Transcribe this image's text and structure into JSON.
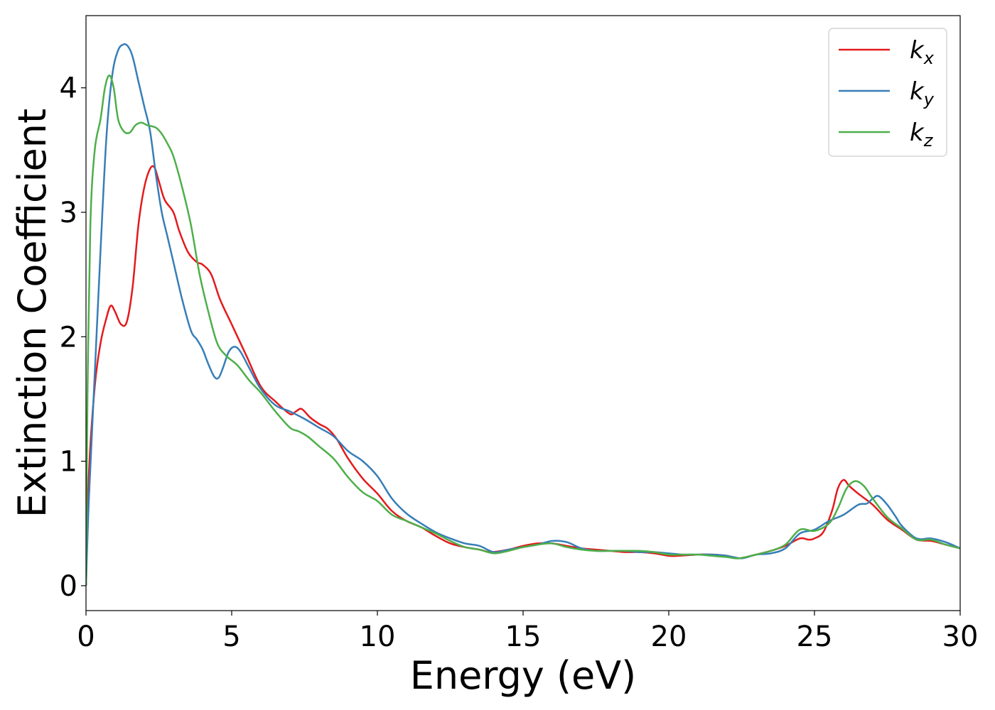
{
  "chart_data": {
    "type": "line",
    "title": "",
    "xlabel": "Energy (eV)",
    "ylabel": "Extinction Coefficient",
    "xlim": [
      0,
      30
    ],
    "ylim": [
      -0.2,
      4.58
    ],
    "xticks": [
      0,
      5,
      10,
      15,
      20,
      25,
      30
    ],
    "yticks": [
      0,
      1,
      2,
      3,
      4
    ],
    "xtick_labels": [
      "0",
      "5",
      "10",
      "15",
      "20",
      "25",
      "30"
    ],
    "ytick_labels": [
      "0",
      "1",
      "2",
      "3",
      "4"
    ],
    "grid": false,
    "legend_position": "top-right",
    "series": [
      {
        "name": "k_x",
        "label_main": "k",
        "label_sub": "x",
        "color": "#e41a1c",
        "x": [
          0,
          0.1,
          0.3,
          0.5,
          0.7,
          0.85,
          1.0,
          1.2,
          1.4,
          1.6,
          1.8,
          2.0,
          2.2,
          2.35,
          2.5,
          2.7,
          3.0,
          3.2,
          3.5,
          3.8,
          4.0,
          4.3,
          4.6,
          5.0,
          5.5,
          6.0,
          6.5,
          7.0,
          7.2,
          7.4,
          7.7,
          8.0,
          8.3,
          8.6,
          9.0,
          9.5,
          10.0,
          10.5,
          11.0,
          11.5,
          12.0,
          12.5,
          13.0,
          13.5,
          13.9,
          14.5,
          15.0,
          15.5,
          16.0,
          16.5,
          17.0,
          17.5,
          18.0,
          18.5,
          19.0,
          19.5,
          20.0,
          20.3,
          21.0,
          21.5,
          22.0,
          22.4,
          23.0,
          23.5,
          24.0,
          24.5,
          24.8,
          25.0,
          25.3,
          25.6,
          25.8,
          26.0,
          26.2,
          26.5,
          27.0,
          27.5,
          28.0,
          28.5,
          29.0,
          29.5,
          30.0
        ],
        "values": [
          0.0,
          0.9,
          1.6,
          1.95,
          2.15,
          2.25,
          2.2,
          2.1,
          2.12,
          2.4,
          2.9,
          3.2,
          3.35,
          3.36,
          3.25,
          3.1,
          3.0,
          2.85,
          2.68,
          2.6,
          2.58,
          2.5,
          2.3,
          2.1,
          1.85,
          1.6,
          1.48,
          1.38,
          1.4,
          1.42,
          1.35,
          1.3,
          1.26,
          1.18,
          1.02,
          0.86,
          0.74,
          0.6,
          0.52,
          0.47,
          0.4,
          0.34,
          0.31,
          0.29,
          0.27,
          0.29,
          0.32,
          0.34,
          0.34,
          0.32,
          0.3,
          0.29,
          0.28,
          0.27,
          0.27,
          0.26,
          0.24,
          0.24,
          0.25,
          0.25,
          0.24,
          0.22,
          0.25,
          0.28,
          0.32,
          0.38,
          0.37,
          0.38,
          0.43,
          0.6,
          0.78,
          0.85,
          0.8,
          0.74,
          0.65,
          0.53,
          0.45,
          0.37,
          0.36,
          0.33,
          0.3
        ]
      },
      {
        "name": "k_y",
        "label_main": "k",
        "label_sub": "y",
        "color": "#377eb8",
        "x": [
          0,
          0.1,
          0.3,
          0.5,
          0.7,
          0.9,
          1.1,
          1.3,
          1.45,
          1.6,
          1.8,
          2.0,
          2.2,
          2.4,
          2.6,
          2.8,
          3.0,
          3.3,
          3.6,
          3.8,
          4.0,
          4.2,
          4.4,
          4.55,
          4.7,
          4.9,
          5.1,
          5.3,
          5.6,
          6.0,
          6.5,
          7.0,
          7.5,
          8.0,
          8.5,
          9.0,
          9.5,
          10.0,
          10.5,
          11.0,
          11.5,
          12.0,
          12.5,
          13.0,
          13.5,
          14.0,
          14.5,
          15.0,
          15.5,
          16.0,
          16.5,
          17.0,
          17.5,
          18.0,
          18.5,
          19.0,
          19.5,
          20.0,
          20.5,
          21.0,
          21.5,
          22.0,
          22.5,
          23.0,
          23.5,
          24.0,
          24.5,
          25.0,
          25.5,
          26.0,
          26.5,
          26.8,
          27.0,
          27.2,
          27.5,
          27.8,
          28.0,
          28.5,
          29.0,
          29.5,
          30.0
        ],
        "values": [
          0.0,
          0.7,
          1.7,
          2.7,
          3.6,
          4.1,
          4.3,
          4.35,
          4.33,
          4.25,
          4.05,
          3.85,
          3.65,
          3.3,
          3.0,
          2.8,
          2.6,
          2.3,
          2.05,
          1.98,
          1.9,
          1.78,
          1.68,
          1.67,
          1.75,
          1.88,
          1.92,
          1.88,
          1.75,
          1.58,
          1.45,
          1.4,
          1.34,
          1.27,
          1.2,
          1.08,
          1.0,
          0.88,
          0.7,
          0.58,
          0.5,
          0.43,
          0.38,
          0.34,
          0.32,
          0.27,
          0.29,
          0.31,
          0.33,
          0.36,
          0.35,
          0.3,
          0.28,
          0.28,
          0.28,
          0.27,
          0.27,
          0.26,
          0.25,
          0.25,
          0.25,
          0.24,
          0.22,
          0.25,
          0.26,
          0.3,
          0.42,
          0.45,
          0.52,
          0.57,
          0.65,
          0.66,
          0.7,
          0.72,
          0.65,
          0.55,
          0.48,
          0.38,
          0.38,
          0.35,
          0.3
        ]
      },
      {
        "name": "k_z",
        "label_main": "k",
        "label_sub": "z",
        "color": "#4daf4a",
        "x": [
          0,
          0.05,
          0.15,
          0.3,
          0.5,
          0.65,
          0.8,
          0.95,
          1.1,
          1.3,
          1.5,
          1.7,
          1.9,
          2.1,
          2.4,
          2.6,
          2.8,
          3.0,
          3.3,
          3.6,
          3.9,
          4.2,
          4.5,
          4.8,
          5.2,
          5.6,
          6.0,
          6.5,
          7.0,
          7.3,
          7.6,
          8.0,
          8.5,
          9.0,
          9.5,
          10.0,
          10.5,
          11.0,
          11.5,
          12.0,
          12.5,
          13.0,
          13.5,
          14.0,
          14.5,
          15.0,
          15.5,
          16.0,
          16.5,
          17.0,
          17.5,
          18.0,
          18.5,
          19.0,
          19.5,
          20.0,
          20.5,
          21.0,
          21.5,
          22.0,
          22.4,
          23.0,
          23.5,
          24.0,
          24.5,
          25.0,
          25.5,
          25.8,
          26.1,
          26.4,
          26.7,
          27.0,
          27.5,
          28.0,
          28.5,
          29.0,
          29.5,
          30.0
        ],
        "values": [
          0.0,
          1.5,
          2.9,
          3.5,
          3.75,
          4.0,
          4.1,
          4.0,
          3.75,
          3.65,
          3.64,
          3.7,
          3.72,
          3.7,
          3.68,
          3.63,
          3.55,
          3.45,
          3.2,
          2.9,
          2.5,
          2.2,
          1.95,
          1.85,
          1.77,
          1.65,
          1.55,
          1.4,
          1.27,
          1.24,
          1.2,
          1.12,
          1.02,
          0.87,
          0.75,
          0.68,
          0.57,
          0.52,
          0.47,
          0.42,
          0.36,
          0.31,
          0.29,
          0.26,
          0.28,
          0.31,
          0.33,
          0.34,
          0.31,
          0.29,
          0.28,
          0.28,
          0.28,
          0.28,
          0.27,
          0.25,
          0.25,
          0.25,
          0.24,
          0.23,
          0.22,
          0.25,
          0.28,
          0.33,
          0.45,
          0.44,
          0.5,
          0.62,
          0.78,
          0.84,
          0.8,
          0.7,
          0.55,
          0.46,
          0.37,
          0.37,
          0.33,
          0.3
        ]
      }
    ]
  }
}
